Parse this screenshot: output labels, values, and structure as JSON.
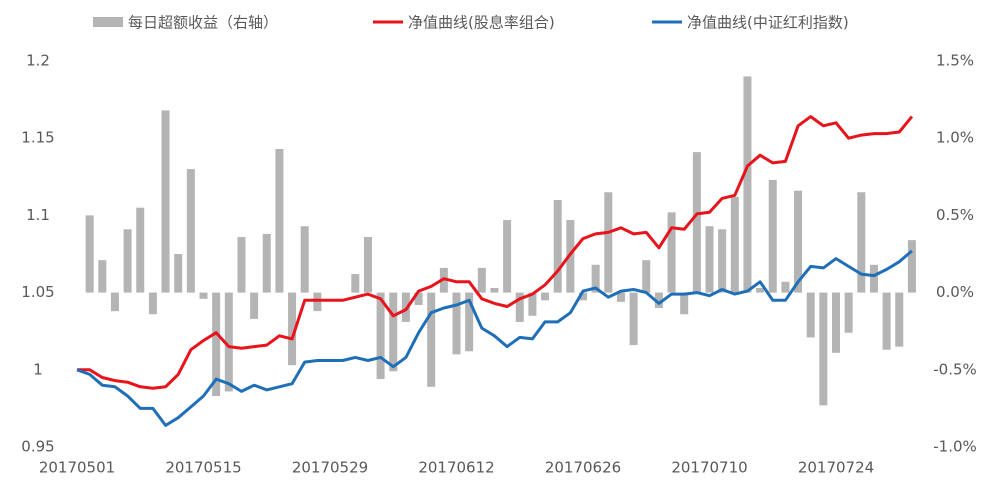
{
  "chart_data": {
    "type": "combo",
    "categories": [
      "20170501",
      null,
      null,
      null,
      null,
      null,
      null,
      null,
      null,
      null,
      "20170515",
      null,
      null,
      null,
      null,
      null,
      null,
      null,
      null,
      null,
      "20170529",
      null,
      null,
      null,
      null,
      null,
      null,
      null,
      null,
      null,
      "20170612",
      null,
      null,
      null,
      null,
      null,
      null,
      null,
      null,
      null,
      "20170626",
      null,
      null,
      null,
      null,
      null,
      null,
      null,
      null,
      null,
      "20170710",
      null,
      null,
      null,
      null,
      null,
      null,
      null,
      null,
      null,
      "20170724",
      null,
      null,
      null,
      null,
      null,
      null
    ],
    "ylim": [
      0.95,
      1.2
    ],
    "yticks": [
      0.95,
      1,
      1.05,
      1.1,
      1.15,
      1.2
    ],
    "y2lim": [
      -1.0,
      1.5
    ],
    "y2ticks": [
      {
        "value": -1.0,
        "label": "-1.0%"
      },
      {
        "value": -0.5,
        "label": "-0.5%"
      },
      {
        "value": 0,
        "label": "0.0%"
      },
      {
        "value": 0.5,
        "label": "0.5%"
      },
      {
        "value": 1.0,
        "label": "1.0%"
      },
      {
        "value": 1.5,
        "label": "1.5%"
      }
    ],
    "legend": "top",
    "series": [
      {
        "name": "每日超额收益（右轴）",
        "type": "bar",
        "axis": "y2",
        "color": "#b4b4b4",
        "values": [
          0,
          0.5,
          0.21,
          -0.12,
          0.41,
          0.55,
          -0.14,
          1.18,
          0.25,
          0.8,
          -0.04,
          -0.67,
          -0.64,
          0.36,
          -0.17,
          0.38,
          0.93,
          -0.47,
          0.43,
          -0.12,
          0,
          0,
          0.12,
          0.36,
          -0.56,
          -0.51,
          -0.19,
          -0.08,
          -0.61,
          0.16,
          -0.4,
          -0.38,
          0.16,
          0.03,
          0.47,
          -0.19,
          -0.15,
          -0.05,
          0.6,
          0.47,
          -0.05,
          0.18,
          0.65,
          -0.06,
          -0.34,
          0.21,
          -0.1,
          0.52,
          -0.14,
          0.91,
          0.43,
          0.41,
          0.62,
          1.4,
          0.03,
          0.73,
          0.07,
          0.66,
          -0.29,
          -0.73,
          -0.39,
          -0.26,
          0.65,
          0.18,
          -0.37,
          -0.35,
          0.34
        ]
      },
      {
        "name": "净值曲线(股息率组合)",
        "type": "line",
        "color": "#e8131b",
        "values": [
          1.0,
          1.0,
          0.995,
          0.993,
          0.992,
          0.989,
          0.988,
          0.989,
          0.997,
          1.013,
          1.019,
          1.024,
          1.015,
          1.014,
          1.015,
          1.016,
          1.022,
          1.02,
          1.045,
          1.045,
          1.045,
          1.045,
          1.047,
          1.049,
          1.046,
          1.035,
          1.039,
          1.051,
          1.054,
          1.059,
          1.057,
          1.057,
          1.046,
          1.043,
          1.041,
          1.046,
          1.049,
          1.055,
          1.064,
          1.075,
          1.085,
          1.088,
          1.089,
          1.092,
          1.088,
          1.089,
          1.079,
          1.092,
          1.091,
          1.101,
          1.102,
          1.111,
          1.113,
          1.132,
          1.139,
          1.134,
          1.135,
          1.158,
          1.164,
          1.158,
          1.16,
          1.15,
          1.152,
          1.153,
          1.153,
          1.154,
          1.164
        ]
      },
      {
        "name": "净值曲线(中证红利指数)",
        "type": "line",
        "color": "#1f6fb8",
        "values": [
          1.0,
          0.997,
          0.99,
          0.989,
          0.983,
          0.975,
          0.975,
          0.964,
          0.969,
          0.976,
          0.983,
          0.994,
          0.991,
          0.986,
          0.99,
          0.987,
          0.989,
          0.991,
          1.005,
          1.006,
          1.006,
          1.006,
          1.008,
          1.006,
          1.008,
          1.002,
          1.008,
          1.024,
          1.037,
          1.04,
          1.042,
          1.045,
          1.027,
          1.022,
          1.015,
          1.021,
          1.02,
          1.031,
          1.031,
          1.037,
          1.051,
          1.053,
          1.047,
          1.051,
          1.052,
          1.05,
          1.043,
          1.049,
          1.049,
          1.05,
          1.048,
          1.052,
          1.049,
          1.051,
          1.057,
          1.045,
          1.045,
          1.057,
          1.067,
          1.066,
          1.072,
          1.067,
          1.062,
          1.061,
          1.065,
          1.07,
          1.077
        ]
      }
    ]
  }
}
